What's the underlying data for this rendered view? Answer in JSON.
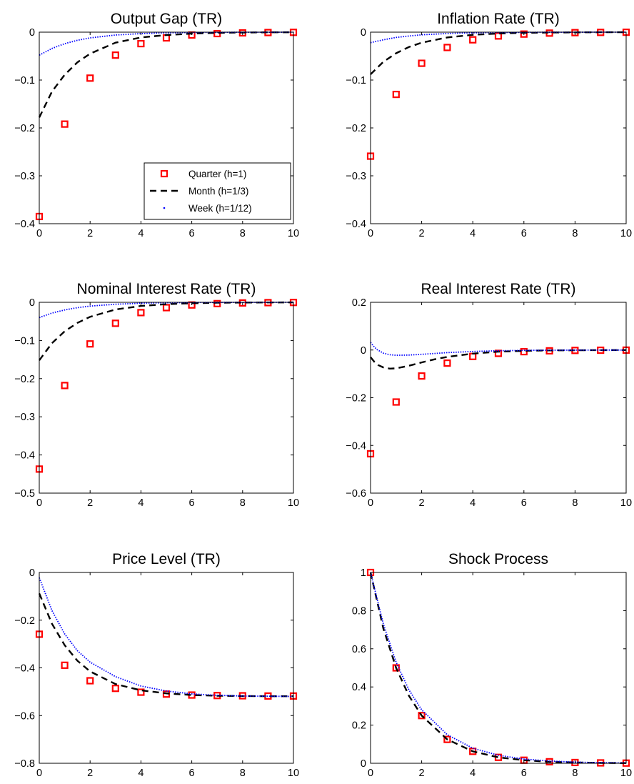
{
  "figure": {
    "legend_panel": 0,
    "legend_placement": "lower-right"
  },
  "chart_data": [
    {
      "type": "scatter",
      "title": "Output Gap (TR)",
      "xlim": [
        0,
        10
      ],
      "ylim": [
        -0.4,
        0
      ],
      "xticks": [
        0,
        2,
        4,
        6,
        8,
        10
      ],
      "yticks": [
        0,
        -0.1,
        -0.2,
        -0.3,
        -0.4
      ],
      "series": [
        {
          "name": "Quarter (h=1)",
          "style": "marker",
          "color": "#ff0000",
          "x": [
            0,
            1,
            2,
            3,
            4,
            5,
            6,
            7,
            8,
            9,
            10
          ],
          "y": [
            -0.385,
            -0.192,
            -0.096,
            -0.048,
            -0.024,
            -0.012,
            -0.006,
            -0.003,
            -0.0015,
            -0.0008,
            -0.0004
          ]
        },
        {
          "name": "Month (h=1/3)",
          "style": "dashed",
          "color": "#000000",
          "x": [
            0,
            0.5,
            1,
            1.5,
            2,
            3,
            4,
            5,
            6,
            7,
            8,
            9,
            10
          ],
          "y": [
            -0.178,
            -0.124,
            -0.089,
            -0.063,
            -0.045,
            -0.022,
            -0.011,
            -0.006,
            -0.003,
            -0.0014,
            -0.0007,
            -0.0003,
            -0.0002
          ]
        },
        {
          "name": "Week (h=1/12)",
          "style": "dotted",
          "color": "#0000ff",
          "x": [
            0,
            0.5,
            1,
            1.5,
            2,
            3,
            4,
            5,
            6,
            7,
            8,
            9,
            10
          ],
          "y": [
            -0.048,
            -0.034,
            -0.024,
            -0.017,
            -0.012,
            -0.006,
            -0.003,
            -0.0015,
            -0.0008,
            -0.0004,
            -0.0002,
            -0.0001,
            0
          ]
        }
      ]
    },
    {
      "type": "scatter",
      "title": "Inflation Rate (TR)",
      "xlim": [
        0,
        10
      ],
      "ylim": [
        -0.4,
        0
      ],
      "xticks": [
        0,
        2,
        4,
        6,
        8,
        10
      ],
      "yticks": [
        0,
        -0.1,
        -0.2,
        -0.3,
        -0.4
      ],
      "series": [
        {
          "name": "Quarter (h=1)",
          "style": "marker",
          "color": "#ff0000",
          "x": [
            0,
            1,
            2,
            3,
            4,
            5,
            6,
            7,
            8,
            9,
            10
          ],
          "y": [
            -0.259,
            -0.13,
            -0.065,
            -0.032,
            -0.016,
            -0.008,
            -0.004,
            -0.002,
            -0.001,
            -0.0005,
            -0.0002
          ]
        },
        {
          "name": "Month (h=1/3)",
          "style": "dashed",
          "color": "#000000",
          "x": [
            0,
            0.5,
            1,
            1.5,
            2,
            3,
            4,
            5,
            6,
            7,
            8,
            9,
            10
          ],
          "y": [
            -0.088,
            -0.062,
            -0.044,
            -0.031,
            -0.022,
            -0.011,
            -0.0055,
            -0.0028,
            -0.0014,
            -0.0007,
            -0.0004,
            -0.0002,
            -0.0001
          ]
        },
        {
          "name": "Week (h=1/12)",
          "style": "dotted",
          "color": "#0000ff",
          "x": [
            0,
            0.5,
            1,
            1.5,
            2,
            3,
            4,
            5,
            6,
            7,
            8,
            9,
            10
          ],
          "y": [
            -0.022,
            -0.016,
            -0.011,
            -0.008,
            -0.0055,
            -0.0028,
            -0.0014,
            -0.0007,
            -0.0004,
            -0.0002,
            -0.0001,
            0,
            0
          ]
        }
      ]
    },
    {
      "type": "scatter",
      "title": "Nominal Interest Rate (TR)",
      "xlim": [
        0,
        10
      ],
      "ylim": [
        -0.5,
        0
      ],
      "xticks": [
        0,
        2,
        4,
        6,
        8,
        10
      ],
      "yticks": [
        0,
        -0.1,
        -0.2,
        -0.3,
        -0.4,
        -0.5
      ],
      "series": [
        {
          "name": "Quarter (h=1)",
          "style": "marker",
          "color": "#ff0000",
          "x": [
            0,
            1,
            2,
            3,
            4,
            5,
            6,
            7,
            8,
            9,
            10
          ],
          "y": [
            -0.437,
            -0.218,
            -0.109,
            -0.055,
            -0.027,
            -0.014,
            -0.007,
            -0.0034,
            -0.0017,
            -0.0009,
            -0.0004
          ]
        },
        {
          "name": "Month (h=1/3)",
          "style": "dashed",
          "color": "#000000",
          "x": [
            0,
            0.5,
            1,
            1.5,
            2,
            3,
            4,
            5,
            6,
            7,
            8,
            9,
            10
          ],
          "y": [
            -0.152,
            -0.107,
            -0.076,
            -0.054,
            -0.038,
            -0.019,
            -0.0095,
            -0.0048,
            -0.0024,
            -0.0012,
            -0.0006,
            -0.0003,
            -0.0001
          ]
        },
        {
          "name": "Week (h=1/12)",
          "style": "dotted",
          "color": "#0000ff",
          "x": [
            0,
            0.5,
            1,
            1.5,
            2,
            3,
            4,
            5,
            6,
            7,
            8,
            9,
            10
          ],
          "y": [
            -0.04,
            -0.028,
            -0.02,
            -0.014,
            -0.01,
            -0.005,
            -0.0025,
            -0.0012,
            -0.0006,
            -0.0003,
            -0.0002,
            -0.0001,
            0
          ]
        }
      ]
    },
    {
      "type": "scatter",
      "title": "Real Interest Rate (TR)",
      "xlim": [
        0,
        10
      ],
      "ylim": [
        -0.6,
        0.2
      ],
      "xticks": [
        0,
        2,
        4,
        6,
        8,
        10
      ],
      "yticks": [
        0.2,
        0,
        -0.2,
        -0.4,
        -0.6
      ],
      "series": [
        {
          "name": "Quarter (h=1)",
          "style": "marker",
          "color": "#ff0000",
          "x": [
            0,
            1,
            2,
            3,
            4,
            5,
            6,
            7,
            8,
            9,
            10
          ],
          "y": [
            -0.435,
            -0.218,
            -0.109,
            -0.055,
            -0.027,
            -0.014,
            -0.007,
            -0.0034,
            -0.0017,
            -0.0009,
            -0.0004
          ]
        },
        {
          "name": "Month (h=1/3)",
          "style": "dashed",
          "color": "#000000",
          "x": [
            0,
            0.15,
            0.3,
            0.5,
            0.75,
            1,
            1.5,
            2,
            2.5,
            3,
            4,
            5,
            6,
            7,
            8,
            9,
            10
          ],
          "y": [
            -0.03,
            -0.05,
            -0.063,
            -0.073,
            -0.078,
            -0.077,
            -0.066,
            -0.052,
            -0.039,
            -0.029,
            -0.015,
            -0.007,
            -0.0035,
            -0.0017,
            -0.0009,
            -0.0004,
            -0.0002
          ]
        },
        {
          "name": "Week (h=1/12)",
          "style": "dotted",
          "color": "#0000ff",
          "x": [
            0,
            0.1,
            0.25,
            0.5,
            0.75,
            1,
            1.5,
            2,
            3,
            4,
            5,
            6,
            7,
            8,
            9,
            10
          ],
          "y": [
            0.032,
            0.018,
            0.002,
            -0.013,
            -0.02,
            -0.022,
            -0.021,
            -0.018,
            -0.011,
            -0.006,
            -0.003,
            -0.0015,
            -0.0007,
            -0.0004,
            -0.0002,
            -0.0001
          ]
        }
      ]
    },
    {
      "type": "scatter",
      "title": "Price Level (TR)",
      "xlim": [
        0,
        10
      ],
      "ylim": [
        -0.8,
        0
      ],
      "xticks": [
        0,
        2,
        4,
        6,
        8,
        10
      ],
      "yticks": [
        0,
        -0.2,
        -0.4,
        -0.6,
        -0.8
      ],
      "series": [
        {
          "name": "Quarter (h=1)",
          "style": "marker",
          "color": "#ff0000",
          "x": [
            0,
            1,
            2,
            3,
            4,
            5,
            6,
            7,
            8,
            9,
            10
          ],
          "y": [
            -0.259,
            -0.389,
            -0.454,
            -0.486,
            -0.502,
            -0.51,
            -0.514,
            -0.516,
            -0.517,
            -0.518,
            -0.518
          ]
        },
        {
          "name": "Month (h=1/3)",
          "style": "dashed",
          "color": "#000000",
          "x": [
            0,
            0.5,
            1,
            1.5,
            2,
            3,
            4,
            5,
            6,
            7,
            8,
            9,
            10
          ],
          "y": [
            -0.088,
            -0.215,
            -0.305,
            -0.37,
            -0.415,
            -0.468,
            -0.494,
            -0.507,
            -0.514,
            -0.517,
            -0.518,
            -0.519,
            -0.519
          ]
        },
        {
          "name": "Week (h=1/12)",
          "style": "dotted",
          "color": "#0000ff",
          "x": [
            0,
            0.5,
            1,
            1.5,
            2,
            3,
            4,
            5,
            6,
            7,
            8,
            9,
            10
          ],
          "y": [
            -0.022,
            -0.16,
            -0.258,
            -0.328,
            -0.376,
            -0.437,
            -0.476,
            -0.497,
            -0.509,
            -0.515,
            -0.518,
            -0.519,
            -0.52
          ]
        }
      ]
    },
    {
      "type": "scatter",
      "title": "Shock Process",
      "xlim": [
        0,
        10
      ],
      "ylim": [
        0,
        1
      ],
      "xticks": [
        0,
        2,
        4,
        6,
        8,
        10
      ],
      "yticks": [
        1,
        0.8,
        0.6,
        0.4,
        0.2,
        0
      ],
      "series": [
        {
          "name": "Quarter (h=1)",
          "style": "marker",
          "color": "#ff0000",
          "x": [
            0,
            1,
            2,
            3,
            4,
            5,
            6,
            7,
            8,
            9,
            10
          ],
          "y": [
            1,
            0.5,
            0.25,
            0.125,
            0.0625,
            0.031,
            0.016,
            0.008,
            0.004,
            0.002,
            0.001
          ]
        },
        {
          "name": "Month (h=1/3)",
          "style": "dashed",
          "color": "#000000",
          "x": [
            0,
            0.5,
            1,
            1.5,
            2,
            3,
            4,
            5,
            6,
            7,
            8,
            9,
            10
          ],
          "y": [
            1,
            0.707,
            0.5,
            0.354,
            0.25,
            0.125,
            0.0625,
            0.031,
            0.016,
            0.008,
            0.004,
            0.002,
            0.001
          ]
        },
        {
          "name": "Week (h=1/12)",
          "style": "dotted",
          "color": "#0000ff",
          "x": [
            0,
            0.5,
            1,
            1.5,
            2,
            3,
            4,
            5,
            6,
            7,
            8,
            9,
            10
          ],
          "y": [
            1,
            0.73,
            0.53,
            0.385,
            0.28,
            0.15,
            0.079,
            0.042,
            0.022,
            0.012,
            0.006,
            0.003,
            0.0017
          ]
        }
      ]
    }
  ]
}
